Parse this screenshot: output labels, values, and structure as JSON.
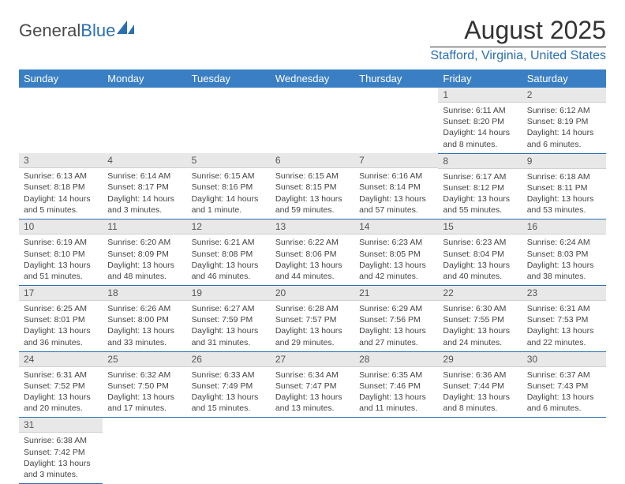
{
  "logo": {
    "text1": "General",
    "text2": "Blue"
  },
  "title": "August 2025",
  "location": "Stafford, Virginia, United States",
  "colors": {
    "header_bg": "#3a7fc4",
    "accent": "#2b6fb3",
    "daynum_bg": "#e8e8e8",
    "text": "#333333"
  },
  "weekdays": [
    "Sunday",
    "Monday",
    "Tuesday",
    "Wednesday",
    "Thursday",
    "Friday",
    "Saturday"
  ],
  "weeks": [
    [
      null,
      null,
      null,
      null,
      null,
      {
        "n": "1",
        "sr": "6:11 AM",
        "ss": "8:20 PM",
        "dh": "14",
        "dm": "8"
      },
      {
        "n": "2",
        "sr": "6:12 AM",
        "ss": "8:19 PM",
        "dh": "14",
        "dm": "6"
      }
    ],
    [
      {
        "n": "3",
        "sr": "6:13 AM",
        "ss": "8:18 PM",
        "dh": "14",
        "dm": "5"
      },
      {
        "n": "4",
        "sr": "6:14 AM",
        "ss": "8:17 PM",
        "dh": "14",
        "dm": "3"
      },
      {
        "n": "5",
        "sr": "6:15 AM",
        "ss": "8:16 PM",
        "dh": "14",
        "dm": "1"
      },
      {
        "n": "6",
        "sr": "6:15 AM",
        "ss": "8:15 PM",
        "dh": "13",
        "dm": "59"
      },
      {
        "n": "7",
        "sr": "6:16 AM",
        "ss": "8:14 PM",
        "dh": "13",
        "dm": "57"
      },
      {
        "n": "8",
        "sr": "6:17 AM",
        "ss": "8:12 PM",
        "dh": "13",
        "dm": "55"
      },
      {
        "n": "9",
        "sr": "6:18 AM",
        "ss": "8:11 PM",
        "dh": "13",
        "dm": "53"
      }
    ],
    [
      {
        "n": "10",
        "sr": "6:19 AM",
        "ss": "8:10 PM",
        "dh": "13",
        "dm": "51"
      },
      {
        "n": "11",
        "sr": "6:20 AM",
        "ss": "8:09 PM",
        "dh": "13",
        "dm": "48"
      },
      {
        "n": "12",
        "sr": "6:21 AM",
        "ss": "8:08 PM",
        "dh": "13",
        "dm": "46"
      },
      {
        "n": "13",
        "sr": "6:22 AM",
        "ss": "8:06 PM",
        "dh": "13",
        "dm": "44"
      },
      {
        "n": "14",
        "sr": "6:23 AM",
        "ss": "8:05 PM",
        "dh": "13",
        "dm": "42"
      },
      {
        "n": "15",
        "sr": "6:23 AM",
        "ss": "8:04 PM",
        "dh": "13",
        "dm": "40"
      },
      {
        "n": "16",
        "sr": "6:24 AM",
        "ss": "8:03 PM",
        "dh": "13",
        "dm": "38"
      }
    ],
    [
      {
        "n": "17",
        "sr": "6:25 AM",
        "ss": "8:01 PM",
        "dh": "13",
        "dm": "36"
      },
      {
        "n": "18",
        "sr": "6:26 AM",
        "ss": "8:00 PM",
        "dh": "13",
        "dm": "33"
      },
      {
        "n": "19",
        "sr": "6:27 AM",
        "ss": "7:59 PM",
        "dh": "13",
        "dm": "31"
      },
      {
        "n": "20",
        "sr": "6:28 AM",
        "ss": "7:57 PM",
        "dh": "13",
        "dm": "29"
      },
      {
        "n": "21",
        "sr": "6:29 AM",
        "ss": "7:56 PM",
        "dh": "13",
        "dm": "27"
      },
      {
        "n": "22",
        "sr": "6:30 AM",
        "ss": "7:55 PM",
        "dh": "13",
        "dm": "24"
      },
      {
        "n": "23",
        "sr": "6:31 AM",
        "ss": "7:53 PM",
        "dh": "13",
        "dm": "22"
      }
    ],
    [
      {
        "n": "24",
        "sr": "6:31 AM",
        "ss": "7:52 PM",
        "dh": "13",
        "dm": "20"
      },
      {
        "n": "25",
        "sr": "6:32 AM",
        "ss": "7:50 PM",
        "dh": "13",
        "dm": "17"
      },
      {
        "n": "26",
        "sr": "6:33 AM",
        "ss": "7:49 PM",
        "dh": "13",
        "dm": "15"
      },
      {
        "n": "27",
        "sr": "6:34 AM",
        "ss": "7:47 PM",
        "dh": "13",
        "dm": "13"
      },
      {
        "n": "28",
        "sr": "6:35 AM",
        "ss": "7:46 PM",
        "dh": "13",
        "dm": "11"
      },
      {
        "n": "29",
        "sr": "6:36 AM",
        "ss": "7:44 PM",
        "dh": "13",
        "dm": "8"
      },
      {
        "n": "30",
        "sr": "6:37 AM",
        "ss": "7:43 PM",
        "dh": "13",
        "dm": "6"
      }
    ],
    [
      {
        "n": "31",
        "sr": "6:38 AM",
        "ss": "7:42 PM",
        "dh": "13",
        "dm": "3"
      },
      null,
      null,
      null,
      null,
      null,
      null
    ]
  ],
  "labels": {
    "sunrise": "Sunrise:",
    "sunset": "Sunset:",
    "daylight": "Daylight:",
    "hours": "hours",
    "and": "and",
    "minutes": "minutes.",
    "minute": "minute."
  }
}
